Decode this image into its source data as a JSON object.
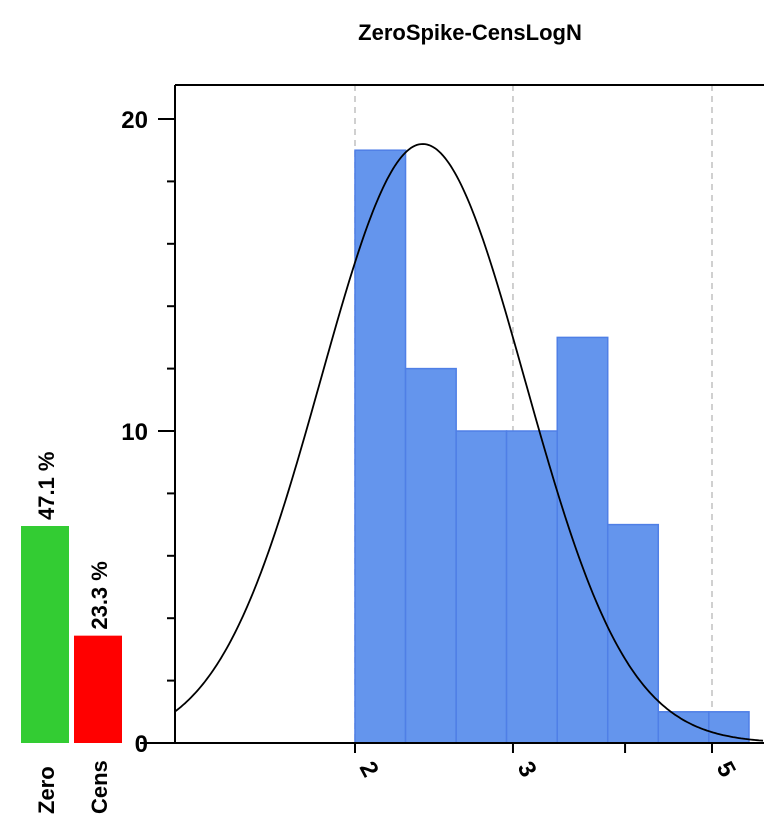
{
  "chart_data": {
    "type": "bar",
    "title": "ZeroSpike-CensLogN",
    "ylim": [
      0,
      20
    ],
    "y_major_ticks": [
      0,
      10,
      20
    ],
    "y_minor_step": 2,
    "x_ticks": [
      {
        "value": 2,
        "label": "2"
      },
      {
        "value": 3,
        "label": "3"
      },
      {
        "value": 4,
        "label": ""
      },
      {
        "value": 5,
        "label": "5"
      }
    ],
    "x_gridlines": [
      2,
      3,
      5
    ],
    "log_x": true,
    "bins": [
      {
        "x0": 2.0,
        "x1": 2.277,
        "count": 19
      },
      {
        "x0": 2.277,
        "x1": 2.593,
        "count": 12
      },
      {
        "x0": 2.593,
        "x1": 2.951,
        "count": 10
      },
      {
        "x0": 2.951,
        "x1": 3.361,
        "count": 10
      },
      {
        "x0": 3.361,
        "x1": 3.826,
        "count": 13
      },
      {
        "x0": 3.826,
        "x1": 4.356,
        "count": 7
      },
      {
        "x0": 4.356,
        "x1": 4.959,
        "count": 1
      },
      {
        "x0": 4.959,
        "x1": 5.646,
        "count": 1
      },
      {
        "x0": 5.646,
        "x1": 6.429,
        "count": 1
      }
    ],
    "fit_curve": {
      "peak_x": 2.38,
      "peak_y": 19.2,
      "sigma_log": 0.262
    },
    "spikes": [
      {
        "label": "Zero",
        "percent": "47.1 %",
        "value": 47.1,
        "color": "#33cc33"
      },
      {
        "label": "Cens",
        "percent": "23.3 %",
        "value": 23.3,
        "color": "#ff0000"
      }
    ],
    "bar_color": "#6495ed",
    "bar_edge": "#4f7fe6",
    "curve_color": "#000000",
    "grid_color": "#c0c0c0"
  }
}
